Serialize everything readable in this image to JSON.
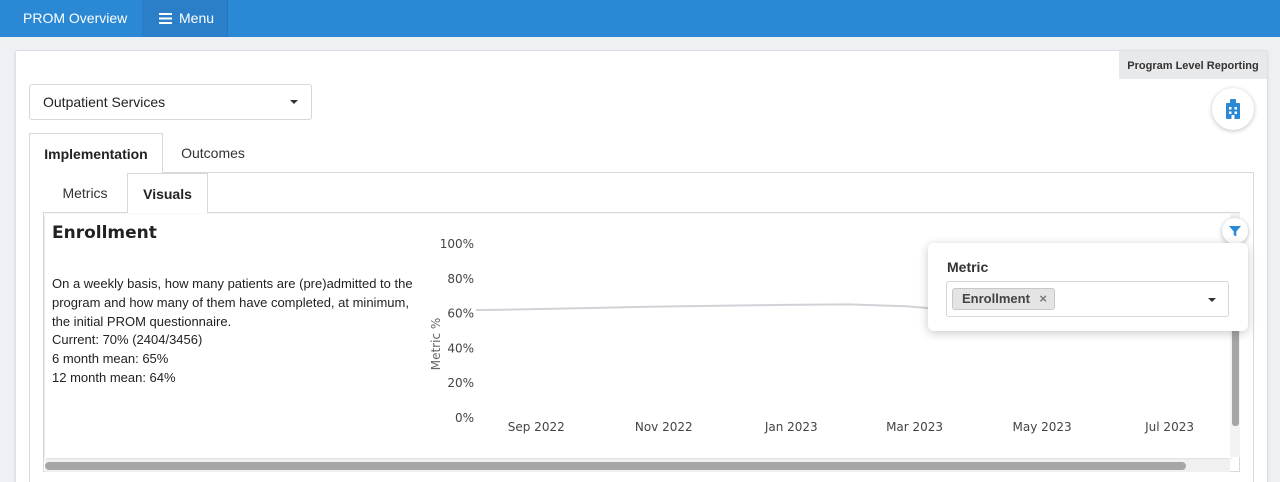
{
  "header": {
    "brand": "PROM Overview",
    "menu_label": "Menu"
  },
  "card": {
    "tag": "Program Level Reporting",
    "building_icon": "building-icon"
  },
  "program_select": {
    "value": "Outpatient Services"
  },
  "tabs": [
    "Implementation",
    "Outcomes"
  ],
  "subtabs": [
    "Metrics",
    "Visuals"
  ],
  "panel": {
    "title": "Enrollment",
    "description": [
      "On a weekly basis, how many patients are (pre)admitted to the",
      "program and how many of them have completed, at minimum,",
      "the initial PROM questionnaire.",
      "Current: 70% (2404/3456)",
      "6 month mean: 65%",
      "12 month mean: 64%"
    ]
  },
  "filter": {
    "label": "Metric",
    "chip": "Enrollment",
    "remove": "×"
  },
  "colors": {
    "topbar": "#2a88d4",
    "accent": "#2a88d4",
    "line": "#cfd2d6"
  },
  "chart_data": {
    "type": "line",
    "ylabel": "Metric %",
    "ylim": [
      0,
      100
    ],
    "yticks": [
      "0%",
      "20%",
      "40%",
      "60%",
      "80%",
      "100%"
    ],
    "xticks": [
      "Sep 2022",
      "Nov 2022",
      "Jan 2023",
      "Mar 2023",
      "May 2023",
      "Jul 2023"
    ],
    "grid": false,
    "series": [
      {
        "x": [
          "2022-08-07",
          "2022-09-01",
          "2022-10-01",
          "2022-11-01",
          "2022-12-01",
          "2023-01-01",
          "2023-02-01",
          "2023-03-01",
          "2023-04-01"
        ],
        "values": [
          62,
          62.5,
          63.2,
          64,
          64.5,
          65,
          65.3,
          64.2,
          61
        ]
      }
    ]
  }
}
